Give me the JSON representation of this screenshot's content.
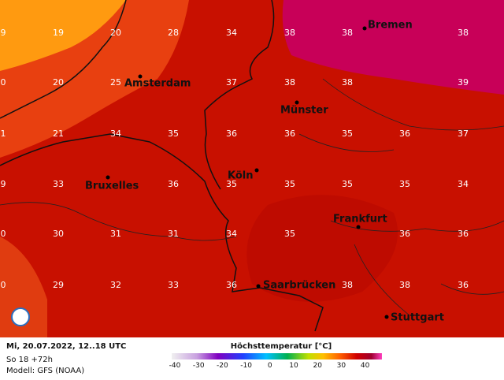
{
  "map": {
    "grid_rows": [
      [
        "9",
        "19",
        "20",
        "28",
        "34",
        "38",
        "38",
        null,
        "38"
      ],
      [
        "0",
        "20",
        "25",
        null,
        "37",
        "38",
        "38",
        null,
        "39"
      ],
      [
        "1",
        "21",
        "34",
        "35",
        "36",
        "36",
        "35",
        "36",
        "37"
      ],
      [
        "9",
        "33",
        null,
        "36",
        "35",
        "35",
        "35",
        "35",
        "34"
      ],
      [
        "0",
        "30",
        "31",
        "31",
        "34",
        "35",
        null,
        "36",
        "36"
      ],
      [
        "0",
        "29",
        "32",
        "33",
        "36",
        null,
        "38",
        "38",
        "36"
      ]
    ],
    "cities": [
      "Bremen",
      "Amsterdam",
      "Münster",
      "Köln",
      "Bruxelles",
      "Frankfurt",
      "Saarbrücken",
      "Stuttgart"
    ]
  },
  "footer": {
    "date": "Mi, 20.07.2022, 12..18 UTC",
    "lead": "So 18 +72h",
    "model": "Modell: GFS (NOAA)",
    "title": "Höchsttemperatur [°C]",
    "ticks": [
      -40,
      -30,
      -20,
      -10,
      0,
      10,
      20,
      30,
      40
    ]
  }
}
